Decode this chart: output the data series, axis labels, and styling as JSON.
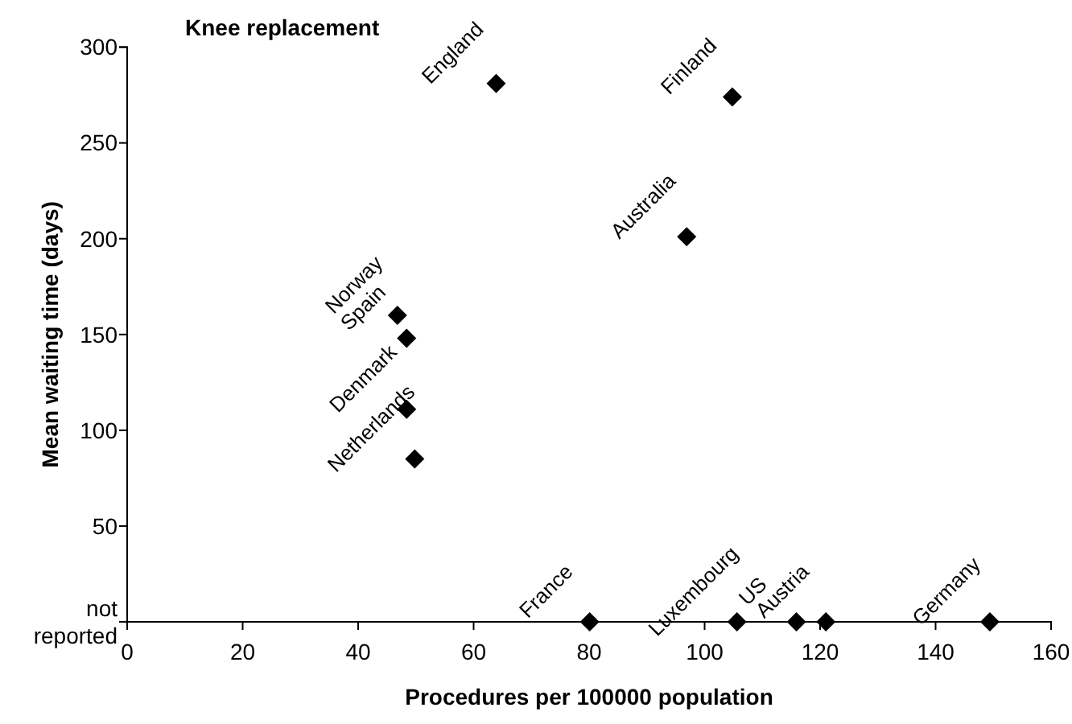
{
  "chart_data": {
    "type": "scatter",
    "title": "Knee replacement",
    "xlabel": "Procedures per 100000 population",
    "ylabel": "Mean waiting time (days)",
    "series": [
      {
        "color": "#000000",
        "x": [
          63.9,
          104.8,
          96.9,
          46.8,
          48.4,
          48.4,
          49.8,
          80.1,
          105.6,
          115.9,
          121,
          149.4
        ],
        "values": [
          281,
          274,
          201,
          160,
          148,
          111,
          85,
          0,
          0,
          0,
          0,
          0
        ]
      }
    ],
    "annotations": [
      {
        "text": "England",
        "x": 63.9,
        "y": 281
      },
      {
        "text": "Finland",
        "x": 104.8,
        "y": 274
      },
      {
        "text": "Australia",
        "x": 96.9,
        "y": 201
      },
      {
        "text": "Norway",
        "x": 46.8,
        "y": 160
      },
      {
        "text": "Spain",
        "x": 48.4,
        "y": 148
      },
      {
        "text": "Denmark",
        "x": 48.4,
        "y": 111
      },
      {
        "text": "Netherlands",
        "x": 49.8,
        "y": 85
      },
      {
        "text": "France",
        "x": 80.1,
        "y": 0
      },
      {
        "text": "Luxembourg",
        "x": 105.6,
        "y": 0
      },
      {
        "text": "US",
        "x": 115.9,
        "y": 0
      },
      {
        "text": "Austria",
        "x": 121,
        "y": 0
      },
      {
        "text": "Germany",
        "x": 149.4,
        "y": 0
      }
    ],
    "xlim": [
      0,
      160
    ],
    "xticks": [
      0,
      20,
      40,
      60,
      80,
      100,
      120,
      140,
      160
    ],
    "ylim": [
      0,
      300
    ],
    "yticks": [
      {
        "value": 0,
        "label": "not reported"
      },
      50,
      100,
      150,
      200,
      250,
      300
    ],
    "marker": "diamond",
    "grid": false
  }
}
